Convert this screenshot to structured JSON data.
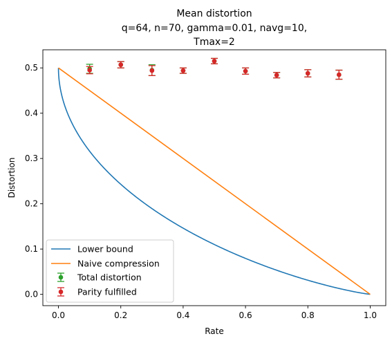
{
  "chart_data": {
    "type": "line",
    "title": "Mean distortion",
    "subtitle_lines": [
      "q=64, n=70, gamma=0.01, navg=10,",
      "Tmax=2"
    ],
    "xlabel": "Rate",
    "ylabel": "Distortion",
    "xlim": [
      -0.05,
      1.05
    ],
    "ylim": [
      -0.025,
      0.54
    ],
    "xticks": [
      "0.0",
      "0.2",
      "0.4",
      "0.6",
      "0.8",
      "1.0"
    ],
    "yticks": [
      "0.0",
      "0.1",
      "0.2",
      "0.3",
      "0.4",
      "0.5"
    ],
    "grid": false,
    "legend_position": "lower-left",
    "series": [
      {
        "name": "Lower bound",
        "kind": "line",
        "color": "#1f77b4",
        "function": "binary entropy bound: rate = 1 - H2(D), D in [0, 0.5]"
      },
      {
        "name": "Naive compression",
        "kind": "line",
        "color": "#ff7f0e",
        "x": [
          0.0,
          1.0
        ],
        "y": [
          0.5,
          0.0
        ]
      },
      {
        "name": "Total distortion",
        "kind": "errorbar",
        "color": "#2ca02c",
        "x": [
          0.1,
          0.2,
          0.3,
          0.4,
          0.5,
          0.6,
          0.7,
          0.8,
          0.9
        ],
        "y": [
          0.498,
          0.507,
          0.495,
          0.494,
          0.515,
          0.493,
          0.484,
          0.488,
          0.485
        ],
        "yerr": [
          0.01,
          0.007,
          0.012,
          0.006,
          0.006,
          0.007,
          0.006,
          0.008,
          0.01
        ]
      },
      {
        "name": "Parity fulfilled",
        "kind": "errorbar",
        "color": "#d62728",
        "x": [
          0.1,
          0.2,
          0.3,
          0.4,
          0.5,
          0.6,
          0.7,
          0.8,
          0.9
        ],
        "y": [
          0.495,
          0.507,
          0.494,
          0.494,
          0.515,
          0.493,
          0.484,
          0.488,
          0.485
        ],
        "yerr": [
          0.008,
          0.007,
          0.011,
          0.006,
          0.006,
          0.007,
          0.006,
          0.008,
          0.01
        ]
      }
    ]
  }
}
